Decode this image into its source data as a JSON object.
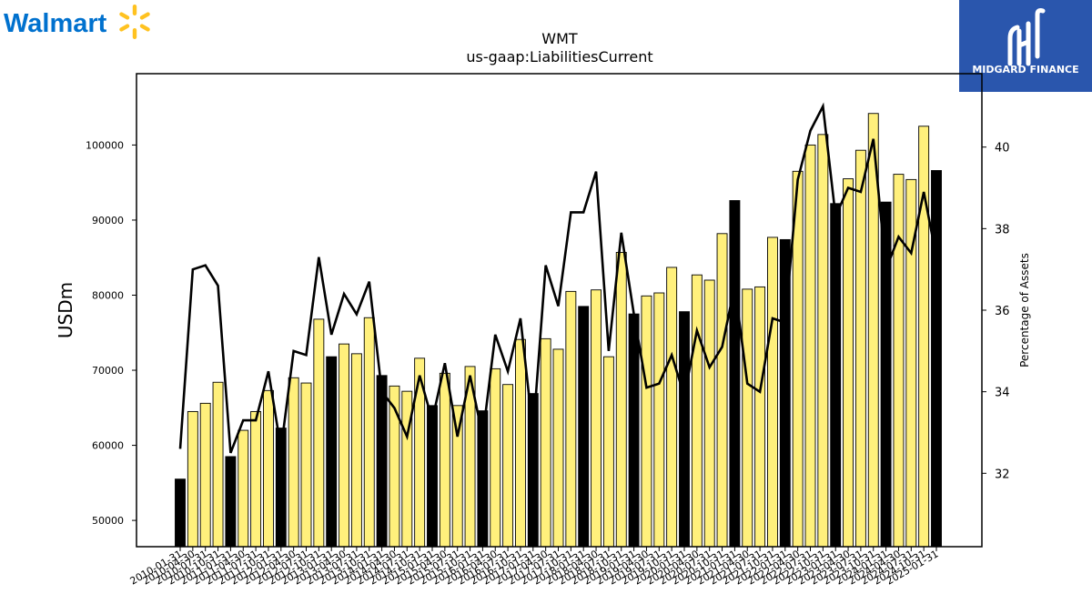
{
  "branding": {
    "walmart": {
      "text": "Walmart",
      "color": "#0071ce",
      "spark_color": "#ffc220",
      "icon": "spark-icon"
    },
    "midgard": {
      "text": "MIDGARD FINANCE",
      "background": "#2a56ad",
      "icon": "midgard-mark-icon"
    }
  },
  "chart_data": {
    "type": "bar",
    "title": "WMT",
    "subtitle": "us-gaap:LiabilitiesCurrent",
    "ylabel": "USDm",
    "y2label": "Percentage of Assets",
    "ylim": [
      46500,
      109500
    ],
    "y2lim": [
      30.2,
      41.8
    ],
    "yticks": [
      50000,
      60000,
      70000,
      80000,
      90000,
      100000
    ],
    "y2ticks": [
      32,
      34,
      36,
      38,
      40
    ],
    "colors": {
      "fiscal_year_end": "#000000",
      "quarter": "#fff07c",
      "bar_edge": "#000000",
      "line": "#000000"
    },
    "categories": [
      "2010-01-31",
      "2010-04-30",
      "2010-07-31",
      "2010-10-31",
      "2011-01-31",
      "2011-04-30",
      "2011-07-31",
      "2011-10-31",
      "2012-01-31",
      "2012-04-30",
      "2012-07-31",
      "2012-10-31",
      "2013-01-31",
      "2013-04-30",
      "2013-07-31",
      "2013-10-31",
      "2014-01-31",
      "2014-04-30",
      "2014-07-31",
      "2014-10-31",
      "2015-01-31",
      "2015-04-30",
      "2015-07-31",
      "2015-10-31",
      "2016-01-31",
      "2016-04-30",
      "2016-07-31",
      "2016-10-31",
      "2017-01-31",
      "2017-04-30",
      "2017-07-31",
      "2017-10-31",
      "2018-01-31",
      "2018-04-30",
      "2018-07-31",
      "2018-10-31",
      "2019-01-31",
      "2019-04-30",
      "2019-07-31",
      "2019-10-31",
      "2020-01-31",
      "2020-04-30",
      "2020-07-31",
      "2020-10-31",
      "2021-01-31",
      "2021-04-30",
      "2021-07-31",
      "2021-10-31",
      "2022-01-31",
      "2022-04-30",
      "2022-07-31",
      "2022-10-31",
      "2023-01-31",
      "2023-04-30",
      "2023-07-31",
      "2023-10-31",
      "2024-01-31",
      "2024-04-30",
      "2024-07-31",
      "2024-10-31",
      "2025-01-31"
    ],
    "series": [
      {
        "type": "bar",
        "values": [
          55500,
          64500,
          65600,
          68400,
          58500,
          62000,
          64500,
          67300,
          62300,
          69000,
          68300,
          76800,
          71800,
          73500,
          72200,
          77000,
          69300,
          67900,
          67200,
          71600,
          65300,
          69600,
          65300,
          70500,
          64600,
          70200,
          68100,
          74100,
          66900,
          74200,
          72800,
          80500,
          78500,
          80700,
          71800,
          85700,
          77500,
          79900,
          80300,
          83700,
          77800,
          82700,
          82000,
          88200,
          92600,
          80800,
          81100,
          87700,
          87400,
          96500,
          100000,
          101400,
          92200,
          95500,
          99300,
          104200,
          92400,
          96100,
          95400,
          102500,
          96600
        ],
        "fiscal_year_end": [
          true,
          false,
          false,
          false,
          true,
          false,
          false,
          false,
          true,
          false,
          false,
          false,
          true,
          false,
          false,
          false,
          true,
          false,
          false,
          false,
          true,
          false,
          false,
          false,
          true,
          false,
          false,
          false,
          true,
          false,
          false,
          false,
          true,
          false,
          false,
          false,
          true,
          false,
          false,
          false,
          true,
          false,
          false,
          false,
          true,
          false,
          false,
          false,
          true,
          false,
          false,
          false,
          true,
          false,
          false,
          false,
          true,
          false,
          false,
          false,
          true
        ]
      },
      {
        "type": "line",
        "axis": "right",
        "values": [
          32.6,
          37.0,
          37.1,
          36.6,
          32.5,
          33.3,
          33.3,
          34.5,
          32.6,
          35.0,
          34.9,
          37.3,
          35.4,
          36.4,
          35.9,
          36.7,
          34.0,
          33.6,
          32.9,
          34.4,
          33.3,
          34.7,
          32.9,
          34.4,
          32.9,
          35.4,
          34.5,
          35.8,
          33.0,
          37.1,
          36.1,
          38.4,
          38.4,
          39.4,
          35.0,
          37.9,
          35.9,
          34.1,
          34.2,
          34.9,
          33.9,
          35.5,
          34.6,
          35.1,
          36.6,
          34.2,
          34.0,
          35.8,
          35.7,
          39.2,
          40.4,
          41.0,
          38.3,
          39.0,
          38.9,
          40.2,
          37.0,
          37.8,
          37.4,
          38.9,
          37.3
        ]
      }
    ]
  }
}
